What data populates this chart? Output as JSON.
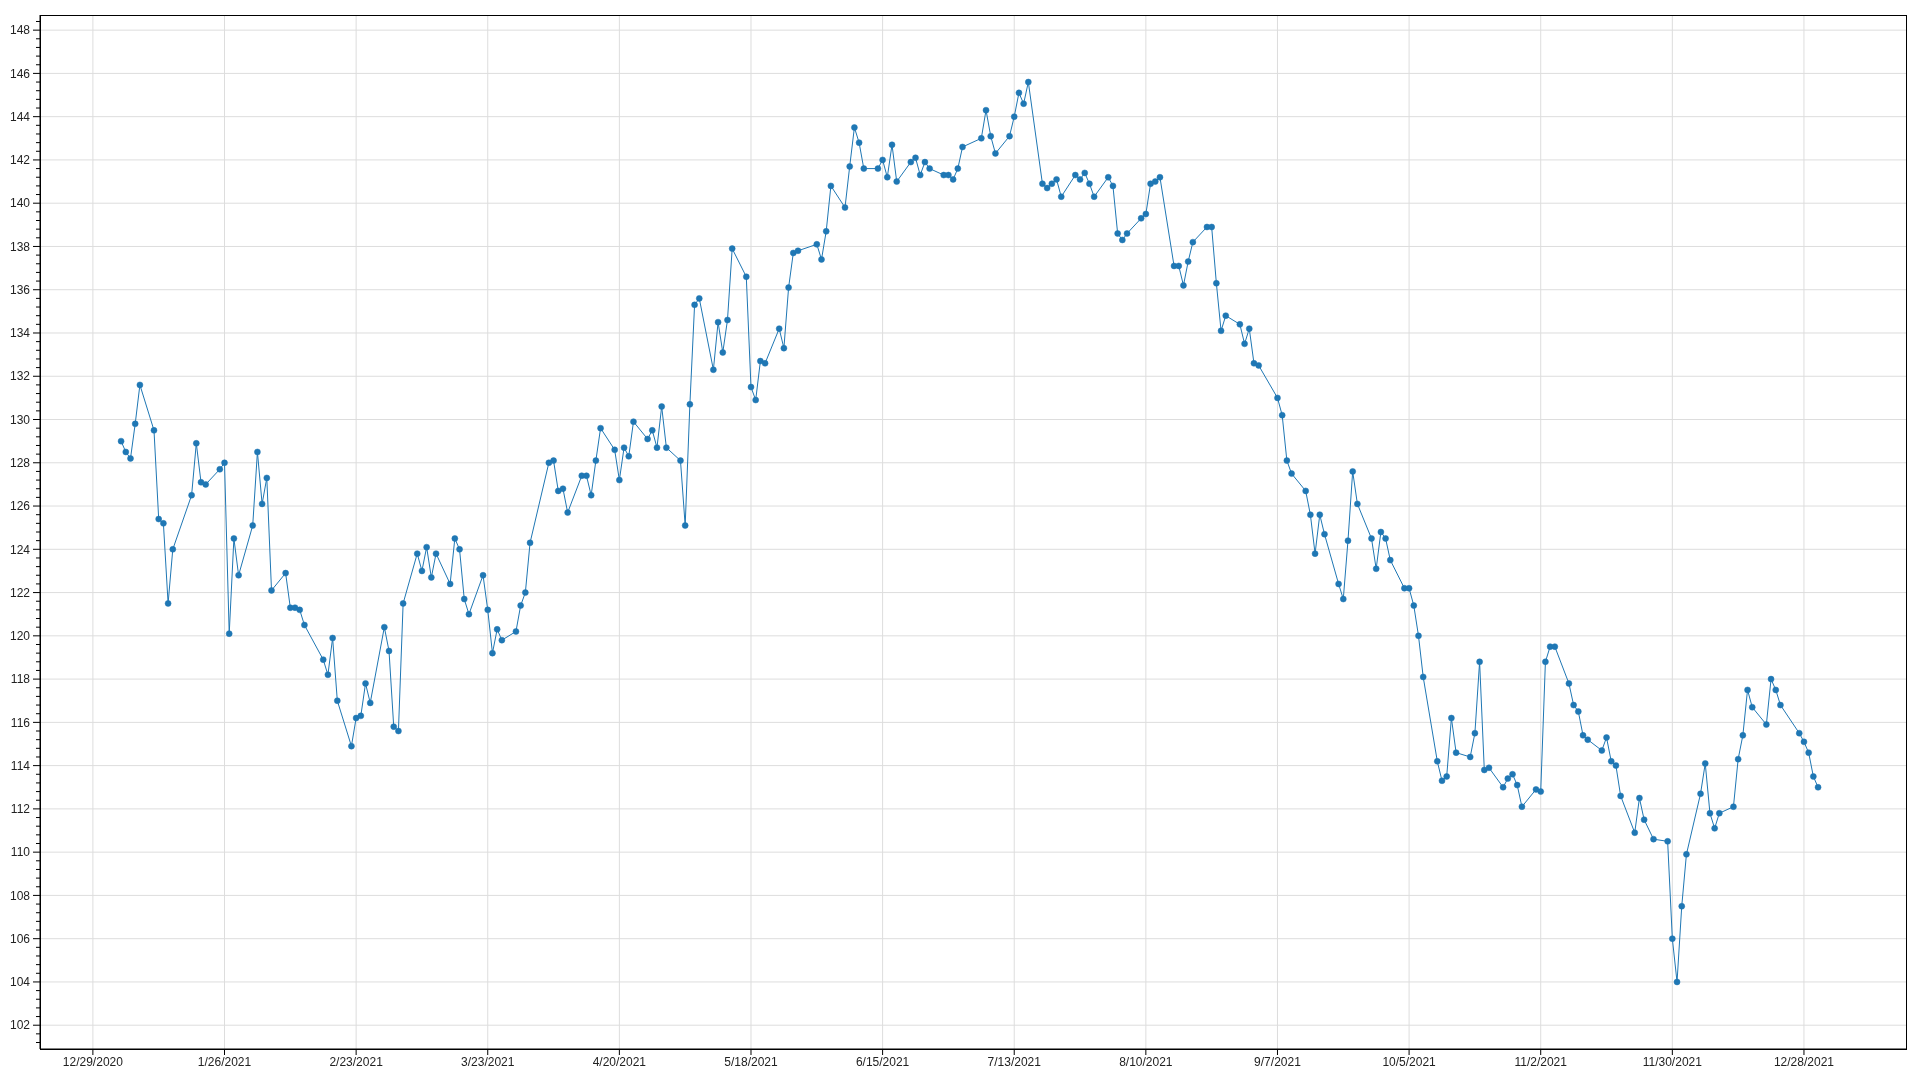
{
  "chart_data": {
    "type": "line",
    "color": "#1f77b4",
    "marker": "circle",
    "grid": true,
    "x": [
      "2021-01-04",
      "2021-01-05",
      "2021-01-06",
      "2021-01-07",
      "2021-01-08",
      "2021-01-11",
      "2021-01-12",
      "2021-01-13",
      "2021-01-14",
      "2021-01-15",
      "2021-01-19",
      "2021-01-20",
      "2021-01-21",
      "2021-01-22",
      "2021-01-25",
      "2021-01-26",
      "2021-01-27",
      "2021-01-28",
      "2021-01-29",
      "2021-02-01",
      "2021-02-02",
      "2021-02-03",
      "2021-02-04",
      "2021-02-05",
      "2021-02-08",
      "2021-02-09",
      "2021-02-10",
      "2021-02-11",
      "2021-02-12",
      "2021-02-16",
      "2021-02-17",
      "2021-02-18",
      "2021-02-19",
      "2021-02-22",
      "2021-02-23",
      "2021-02-24",
      "2021-02-25",
      "2021-02-26",
      "2021-03-01",
      "2021-03-02",
      "2021-03-03",
      "2021-03-04",
      "2021-03-05",
      "2021-03-08",
      "2021-03-09",
      "2021-03-10",
      "2021-03-11",
      "2021-03-12",
      "2021-03-15",
      "2021-03-16",
      "2021-03-17",
      "2021-03-18",
      "2021-03-19",
      "2021-03-22",
      "2021-03-23",
      "2021-03-24",
      "2021-03-25",
      "2021-03-26",
      "2021-03-29",
      "2021-03-30",
      "2021-03-31",
      "2021-04-01",
      "2021-04-05",
      "2021-04-06",
      "2021-04-07",
      "2021-04-08",
      "2021-04-09",
      "2021-04-12",
      "2021-04-13",
      "2021-04-14",
      "2021-04-15",
      "2021-04-16",
      "2021-04-19",
      "2021-04-20",
      "2021-04-21",
      "2021-04-22",
      "2021-04-23",
      "2021-04-26",
      "2021-04-27",
      "2021-04-28",
      "2021-04-29",
      "2021-04-30",
      "2021-05-03",
      "2021-05-04",
      "2021-05-05",
      "2021-05-06",
      "2021-05-07",
      "2021-05-10",
      "2021-05-11",
      "2021-05-12",
      "2021-05-13",
      "2021-05-14",
      "2021-05-17",
      "2021-05-18",
      "2021-05-19",
      "2021-05-20",
      "2021-05-21",
      "2021-05-24",
      "2021-05-25",
      "2021-05-26",
      "2021-05-27",
      "2021-05-28",
      "2021-06-01",
      "2021-06-02",
      "2021-06-03",
      "2021-06-04",
      "2021-06-07",
      "2021-06-08",
      "2021-06-09",
      "2021-06-10",
      "2021-06-11",
      "2021-06-14",
      "2021-06-15",
      "2021-06-16",
      "2021-06-17",
      "2021-06-18",
      "2021-06-21",
      "2021-06-22",
      "2021-06-23",
      "2021-06-24",
      "2021-06-25",
      "2021-06-28",
      "2021-06-29",
      "2021-06-30",
      "2021-07-01",
      "2021-07-02",
      "2021-07-06",
      "2021-07-07",
      "2021-07-08",
      "2021-07-09",
      "2021-07-12",
      "2021-07-13",
      "2021-07-14",
      "2021-07-15",
      "2021-07-16",
      "2021-07-19",
      "2021-07-20",
      "2021-07-21",
      "2021-07-22",
      "2021-07-23",
      "2021-07-26",
      "2021-07-27",
      "2021-07-28",
      "2021-07-29",
      "2021-07-30",
      "2021-08-02",
      "2021-08-03",
      "2021-08-04",
      "2021-08-05",
      "2021-08-06",
      "2021-08-09",
      "2021-08-10",
      "2021-08-11",
      "2021-08-12",
      "2021-08-13",
      "2021-08-16",
      "2021-08-17",
      "2021-08-18",
      "2021-08-19",
      "2021-08-20",
      "2021-08-23",
      "2021-08-24",
      "2021-08-25",
      "2021-08-26",
      "2021-08-27",
      "2021-08-30",
      "2021-08-31",
      "2021-09-01",
      "2021-09-02",
      "2021-09-03",
      "2021-09-07",
      "2021-09-08",
      "2021-09-09",
      "2021-09-10",
      "2021-09-13",
      "2021-09-14",
      "2021-09-15",
      "2021-09-16",
      "2021-09-17",
      "2021-09-20",
      "2021-09-21",
      "2021-09-22",
      "2021-09-23",
      "2021-09-24",
      "2021-09-27",
      "2021-09-28",
      "2021-09-29",
      "2021-09-30",
      "2021-10-01",
      "2021-10-04",
      "2021-10-05",
      "2021-10-06",
      "2021-10-07",
      "2021-10-08",
      "2021-10-11",
      "2021-10-12",
      "2021-10-13",
      "2021-10-14",
      "2021-10-15",
      "2021-10-18",
      "2021-10-19",
      "2021-10-20",
      "2021-10-21",
      "2021-10-22",
      "2021-10-25",
      "2021-10-26",
      "2021-10-27",
      "2021-10-28",
      "2021-10-29",
      "2021-11-01",
      "2021-11-02",
      "2021-11-03",
      "2021-11-04",
      "2021-11-05",
      "2021-11-08",
      "2021-11-09",
      "2021-11-10",
      "2021-11-11",
      "2021-11-12",
      "2021-11-15",
      "2021-11-16",
      "2021-11-17",
      "2021-11-18",
      "2021-11-19",
      "2021-11-22",
      "2021-11-23",
      "2021-11-24",
      "2021-11-26",
      "2021-11-29",
      "2021-11-30",
      "2021-12-01",
      "2021-12-02",
      "2021-12-03",
      "2021-12-06",
      "2021-12-07",
      "2021-12-08",
      "2021-12-09",
      "2021-12-10",
      "2021-12-13",
      "2021-12-14",
      "2021-12-15",
      "2021-12-16",
      "2021-12-17",
      "2021-12-20",
      "2021-12-21",
      "2021-12-22",
      "2021-12-23",
      "2021-12-27",
      "2021-12-28",
      "2021-12-29",
      "2021-12-30",
      "2021-12-31"
    ],
    "values": [
      129.0,
      128.5,
      128.2,
      129.8,
      131.6,
      129.5,
      125.4,
      125.2,
      121.5,
      124.0,
      126.5,
      128.9,
      127.1,
      127.0,
      127.7,
      128.0,
      120.1,
      124.5,
      122.8,
      125.1,
      128.5,
      126.1,
      127.3,
      122.1,
      122.9,
      121.3,
      121.3,
      121.2,
      120.5,
      118.9,
      118.2,
      119.9,
      117.0,
      114.9,
      116.2,
      116.3,
      117.8,
      116.9,
      120.4,
      119.3,
      115.8,
      115.6,
      121.5,
      123.8,
      123.0,
      124.1,
      122.7,
      123.8,
      122.4,
      124.5,
      124.0,
      121.7,
      121.0,
      122.8,
      121.2,
      119.2,
      120.3,
      119.8,
      120.2,
      121.4,
      122.0,
      124.3,
      128.0,
      128.1,
      126.7,
      126.8,
      125.7,
      127.4,
      127.4,
      126.5,
      128.1,
      129.6,
      128.6,
      127.2,
      128.7,
      128.3,
      129.9,
      129.1,
      129.5,
      128.7,
      130.6,
      128.7,
      128.1,
      125.1,
      130.7,
      135.3,
      135.6,
      132.3,
      134.5,
      133.1,
      134.6,
      137.9,
      136.6,
      131.5,
      130.9,
      132.7,
      132.6,
      134.2,
      133.3,
      136.1,
      137.7,
      137.8,
      138.1,
      137.4,
      138.7,
      140.8,
      139.8,
      141.7,
      143.5,
      142.8,
      141.6,
      141.6,
      142.0,
      141.2,
      142.7,
      141.0,
      141.9,
      142.1,
      141.3,
      141.9,
      141.6,
      141.3,
      141.3,
      141.1,
      141.6,
      142.6,
      143.0,
      144.3,
      143.1,
      142.3,
      143.1,
      144.0,
      145.1,
      144.6,
      145.6,
      140.9,
      140.7,
      140.9,
      141.1,
      140.3,
      141.3,
      141.1,
      141.4,
      140.9,
      140.3,
      141.2,
      140.8,
      138.6,
      138.3,
      138.6,
      139.3,
      139.5,
      140.9,
      141.0,
      141.2,
      137.1,
      137.1,
      136.2,
      137.3,
      138.2,
      138.9,
      138.9,
      136.3,
      134.1,
      134.8,
      134.4,
      133.5,
      134.2,
      132.6,
      132.5,
      131.0,
      130.2,
      128.1,
      127.5,
      126.7,
      125.6,
      123.8,
      125.6,
      124.7,
      122.4,
      121.7,
      124.4,
      127.6,
      126.1,
      124.5,
      123.1,
      124.8,
      124.5,
      123.5,
      122.2,
      122.2,
      121.4,
      120.0,
      118.1,
      114.2,
      113.3,
      113.5,
      116.2,
      114.6,
      114.4,
      115.5,
      118.8,
      113.8,
      113.9,
      113.0,
      113.4,
      113.6,
      113.1,
      112.1,
      112.9,
      112.8,
      118.8,
      119.5,
      119.5,
      117.8,
      116.8,
      116.5,
      115.4,
      115.2,
      114.7,
      115.3,
      114.2,
      114.0,
      112.6,
      110.9,
      112.5,
      111.5,
      110.6,
      110.5,
      106.0,
      104.0,
      107.5,
      109.9,
      112.7,
      114.1,
      111.8,
      111.1,
      111.8,
      112.1,
      114.3,
      115.4,
      117.5,
      116.7,
      115.9,
      118.0,
      117.5,
      116.8,
      115.5,
      115.1,
      114.6,
      113.5,
      113.0
    ],
    "xlim": [
      "2020-12-17T18:00",
      "2022-01-18T17:00"
    ],
    "xticks": [
      {
        "value": "2020-12-29",
        "label": "12/29/2020"
      },
      {
        "value": "2021-01-26",
        "label": "1/26/2021"
      },
      {
        "value": "2021-02-23",
        "label": "2/23/2021"
      },
      {
        "value": "2021-03-23",
        "label": "3/23/2021"
      },
      {
        "value": "2021-04-20",
        "label": "4/20/2021"
      },
      {
        "value": "2021-05-18",
        "label": "5/18/2021"
      },
      {
        "value": "2021-06-15",
        "label": "6/15/2021"
      },
      {
        "value": "2021-07-13",
        "label": "7/13/2021"
      },
      {
        "value": "2021-08-10",
        "label": "8/10/2021"
      },
      {
        "value": "2021-09-07",
        "label": "9/7/2021"
      },
      {
        "value": "2021-10-05",
        "label": "10/5/2021"
      },
      {
        "value": "2021-11-02",
        "label": "11/2/2021"
      },
      {
        "value": "2021-11-30",
        "label": "11/30/2021"
      },
      {
        "value": "2021-12-28",
        "label": "12/28/2021"
      }
    ],
    "ylim": [
      100.9,
      148.7
    ],
    "yticks": [
      {
        "value": 101.2,
        "label": null
      },
      {
        "value": 101.6,
        "label": null
      },
      102,
      {
        "value": 102.4,
        "label": null
      },
      {
        "value": 102.8,
        "label": null
      },
      {
        "value": 103.2,
        "label": null
      },
      {
        "value": 103.6,
        "label": null
      },
      104,
      {
        "value": 104.4,
        "label": null
      },
      {
        "value": 104.8,
        "label": null
      },
      {
        "value": 105.2,
        "label": null
      },
      {
        "value": 105.6,
        "label": null
      },
      106,
      {
        "value": 106.4,
        "label": null
      },
      {
        "value": 106.8,
        "label": null
      },
      {
        "value": 107.2,
        "label": null
      },
      {
        "value": 107.6,
        "label": null
      },
      108,
      {
        "value": 108.4,
        "label": null
      },
      {
        "value": 108.8,
        "label": null
      },
      {
        "value": 109.2,
        "label": null
      },
      {
        "value": 109.6,
        "label": null
      },
      110,
      {
        "value": 110.4,
        "label": null
      },
      {
        "value": 110.8,
        "label": null
      },
      {
        "value": 111.2,
        "label": null
      },
      {
        "value": 111.6,
        "label": null
      },
      112,
      {
        "value": 112.4,
        "label": null
      },
      {
        "value": 112.8,
        "label": null
      },
      {
        "value": 113.2,
        "label": null
      },
      {
        "value": 113.6,
        "label": null
      },
      114,
      {
        "value": 114.4,
        "label": null
      },
      {
        "value": 114.8,
        "label": null
      },
      {
        "value": 115.2,
        "label": null
      },
      {
        "value": 115.6,
        "label": null
      },
      116,
      {
        "value": 116.4,
        "label": null
      },
      {
        "value": 116.8,
        "label": null
      },
      {
        "value": 117.2,
        "label": null
      },
      {
        "value": 117.6,
        "label": null
      },
      118,
      {
        "value": 118.4,
        "label": null
      },
      {
        "value": 118.8,
        "label": null
      },
      {
        "value": 119.2,
        "label": null
      },
      {
        "value": 119.6,
        "label": null
      },
      120,
      {
        "value": 120.4,
        "label": null
      },
      {
        "value": 120.8,
        "label": null
      },
      {
        "value": 121.2,
        "label": null
      },
      {
        "value": 121.6,
        "label": null
      },
      122,
      {
        "value": 122.4,
        "label": null
      },
      {
        "value": 122.8,
        "label": null
      },
      {
        "value": 123.2,
        "label": null
      },
      {
        "value": 123.6,
        "label": null
      },
      124,
      {
        "value": 124.4,
        "label": null
      },
      {
        "value": 124.8,
        "label": null
      },
      {
        "value": 125.2,
        "label": null
      },
      {
        "value": 125.6,
        "label": null
      },
      126,
      {
        "value": 126.4,
        "label": null
      },
      {
        "value": 126.8,
        "label": null
      },
      {
        "value": 127.2,
        "label": null
      },
      {
        "value": 127.6,
        "label": null
      },
      128,
      {
        "value": 128.4,
        "label": null
      },
      {
        "value": 128.8,
        "label": null
      },
      {
        "value": 129.2,
        "label": null
      },
      {
        "value": 129.6,
        "label": null
      },
      130,
      {
        "value": 130.4,
        "label": null
      },
      {
        "value": 130.8,
        "label": null
      },
      {
        "value": 131.2,
        "label": null
      },
      {
        "value": 131.6,
        "label": null
      },
      132,
      {
        "value": 132.4,
        "label": null
      },
      {
        "value": 132.8,
        "label": null
      },
      {
        "value": 133.2,
        "label": null
      },
      {
        "value": 133.6,
        "label": null
      },
      134,
      {
        "value": 134.4,
        "label": null
      },
      {
        "value": 134.8,
        "label": null
      },
      {
        "value": 135.2,
        "label": null
      },
      {
        "value": 135.6,
        "label": null
      },
      136,
      {
        "value": 136.4,
        "label": null
      },
      {
        "value": 136.8,
        "label": null
      },
      {
        "value": 137.2,
        "label": null
      },
      {
        "value": 137.6,
        "label": null
      },
      138,
      {
        "value": 138.4,
        "label": null
      },
      {
        "value": 138.8,
        "label": null
      },
      {
        "value": 139.2,
        "label": null
      },
      {
        "value": 139.6,
        "label": null
      },
      140,
      {
        "value": 140.4,
        "label": null
      },
      {
        "value": 140.8,
        "label": null
      },
      {
        "value": 141.2,
        "label": null
      },
      {
        "value": 141.6,
        "label": null
      },
      142,
      {
        "value": 142.4,
        "label": null
      },
      {
        "value": 142.8,
        "label": null
      },
      {
        "value": 143.2,
        "label": null
      },
      {
        "value": 143.6,
        "label": null
      },
      144,
      {
        "value": 144.4,
        "label": null
      },
      {
        "value": 144.8,
        "label": null
      },
      {
        "value": 145.2,
        "label": null
      },
      {
        "value": 145.6,
        "label": null
      },
      146,
      {
        "value": 146.4,
        "label": null
      },
      {
        "value": 146.8,
        "label": null
      },
      {
        "value": 147.2,
        "label": null
      },
      {
        "value": 147.6,
        "label": null
      },
      148,
      {
        "value": 148.4,
        "label": null
      }
    ]
  }
}
